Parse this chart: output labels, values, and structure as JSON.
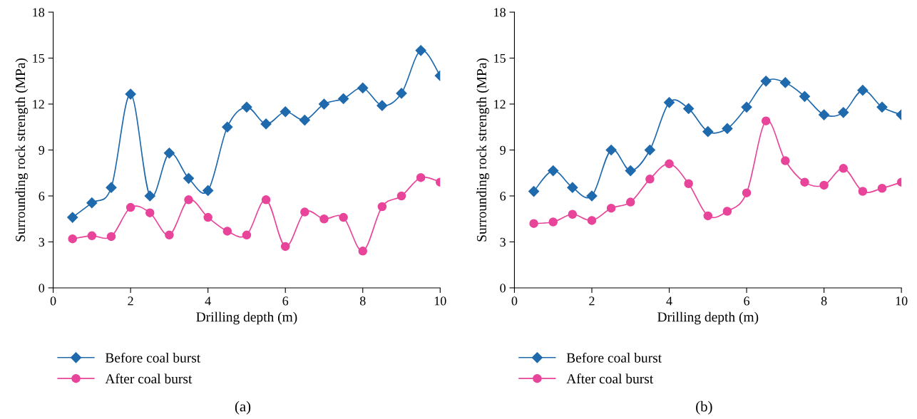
{
  "chart_data": [
    {
      "type": "line",
      "xlabel": "Drilling depth (m)",
      "ylabel": "Surrounding rock strength (MPa)",
      "x": [
        0.5,
        1,
        1.5,
        2,
        2.5,
        3,
        3.5,
        4,
        4.5,
        5,
        5.5,
        6,
        6.5,
        7,
        7.5,
        8,
        8.5,
        9,
        9.5,
        10
      ],
      "xlim": [
        0,
        10
      ],
      "xticks": [
        0,
        2,
        4,
        6,
        8,
        10
      ],
      "ylim": [
        0,
        18
      ],
      "yticks": [
        0,
        3,
        6,
        9,
        12,
        15,
        18
      ],
      "grid": false,
      "legend": "bottom left",
      "annotations": [
        "(a)"
      ],
      "series": [
        {
          "name": "Before coal burst",
          "color": "#1f6aad",
          "marker": "diamond",
          "values": [
            4.6,
            5.55,
            6.55,
            12.65,
            6.0,
            8.8,
            7.15,
            6.35,
            10.5,
            11.8,
            10.7,
            11.5,
            10.95,
            12.0,
            12.35,
            13.05,
            11.9,
            12.7,
            15.5,
            13.85
          ]
        },
        {
          "name": "After coal burst",
          "color": "#e8449a",
          "marker": "circle",
          "values": [
            3.2,
            3.4,
            3.35,
            5.25,
            4.9,
            3.45,
            5.75,
            4.6,
            3.7,
            3.45,
            5.75,
            2.7,
            4.95,
            4.5,
            4.6,
            2.4,
            5.3,
            6.0,
            7.2,
            6.9
          ]
        }
      ]
    },
    {
      "type": "line",
      "xlabel": "Drilling depth (m)",
      "ylabel": "Surrounding rock strength (MPa)",
      "x": [
        0.5,
        1,
        1.5,
        2,
        2.5,
        3,
        3.5,
        4,
        4.5,
        5,
        5.5,
        6,
        6.5,
        7,
        7.5,
        8,
        8.5,
        9,
        9.5,
        10
      ],
      "xlim": [
        0,
        10
      ],
      "xticks": [
        0,
        2,
        4,
        6,
        8,
        10
      ],
      "ylim": [
        0,
        18
      ],
      "yticks": [
        0,
        3,
        6,
        9,
        12,
        15,
        18
      ],
      "grid": false,
      "legend": "bottom left",
      "annotations": [
        "(b)"
      ],
      "series": [
        {
          "name": "Before coal burst",
          "color": "#1f6aad",
          "marker": "diamond",
          "values": [
            6.3,
            7.65,
            6.55,
            6.0,
            9.0,
            7.65,
            9.0,
            12.1,
            11.7,
            10.2,
            10.4,
            11.8,
            13.5,
            13.4,
            12.5,
            11.3,
            11.45,
            12.9,
            11.8,
            11.3
          ]
        },
        {
          "name": "After coal burst",
          "color": "#e8449a",
          "marker": "circle",
          "values": [
            4.2,
            4.3,
            4.8,
            4.4,
            5.2,
            5.6,
            7.1,
            8.1,
            6.8,
            4.7,
            5.0,
            6.2,
            10.9,
            8.3,
            6.9,
            6.7,
            7.8,
            6.3,
            6.5,
            6.9
          ]
        }
      ]
    }
  ]
}
